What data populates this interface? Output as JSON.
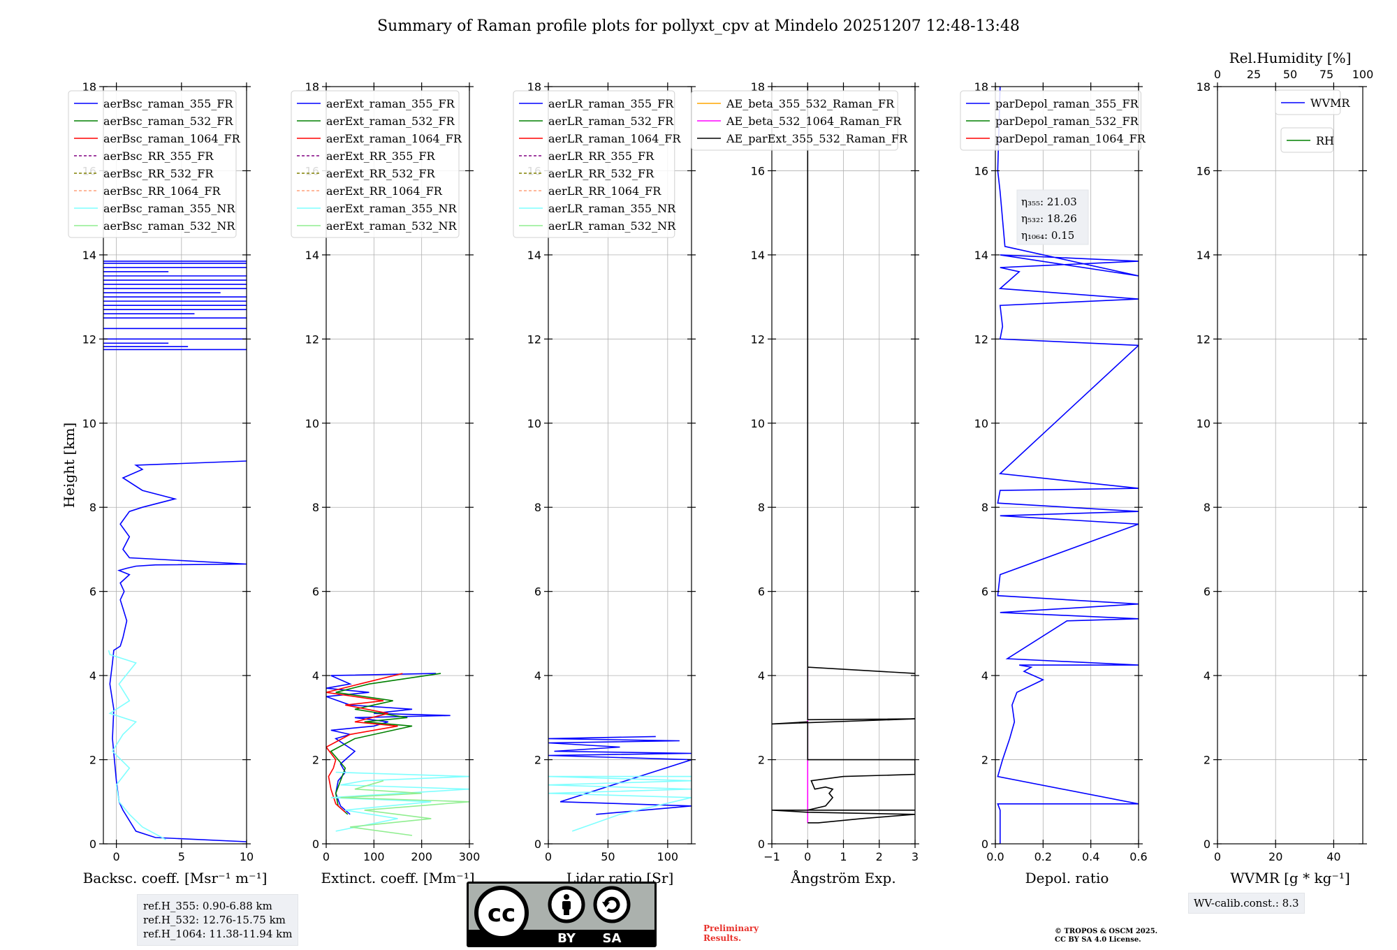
{
  "title": "Summary of Raman profile plots for pollyxt_cpv at Mindelo 20251207 12:48-13:48",
  "chart_data": [
    {
      "type": "line",
      "id": "backscatter",
      "xlabel": "Backsc. coeff. [Msr⁻¹ m⁻¹]",
      "ylabel": "Height [km]",
      "xlim": [
        -1,
        10
      ],
      "ylim": [
        0,
        18
      ],
      "xticks": [
        0,
        5,
        10
      ],
      "yticks": [
        0,
        2,
        4,
        6,
        8,
        10,
        12,
        14,
        16,
        18
      ],
      "legend": [
        "aerBsc_raman_355_FR",
        "aerBsc_raman_532_FR",
        "aerBsc_raman_1064_FR",
        "aerBsc_RR_355_FR",
        "aerBsc_RR_532_FR",
        "aerBsc_RR_1064_FR",
        "aerBsc_raman_355_NR",
        "aerBsc_raman_532_NR"
      ],
      "legend_colors": [
        "#0000ff",
        "#008000",
        "#ff0000",
        "#800080",
        "#808000",
        "#ffa07a",
        "#7fffff",
        "#90ee90"
      ],
      "legend_dashed": [
        false,
        false,
        false,
        true,
        true,
        true,
        false,
        false
      ],
      "legend_loc": "top-left",
      "series": [
        {
          "name": "aerBsc_raman_355_FR",
          "color": "#0000ff",
          "x": [
            10,
            3,
            1.5,
            0.5,
            0.2,
            0,
            -0.3,
            -0.2,
            -0.5,
            -0.3,
            -0.2,
            0.3,
            0.5,
            0.8,
            0.5,
            0.3,
            0.6,
            0.3,
            1,
            0.2,
            0.8,
            1.5,
            3,
            10,
            1,
            0.5,
            1,
            0.3,
            1,
            2,
            4.5,
            2,
            0.5,
            2,
            1.5,
            10
          ],
          "y": [
            0.05,
            0.15,
            0.3,
            0.8,
            1,
            1.5,
            2.5,
            3.2,
            3.8,
            4.3,
            4.6,
            4.7,
            4.9,
            5.3,
            5.6,
            5.8,
            6,
            6.2,
            6.4,
            6.5,
            6.55,
            6.6,
            6.63,
            6.65,
            6.8,
            7,
            7.3,
            7.6,
            7.9,
            8,
            8.2,
            8.4,
            8.7,
            8.9,
            9,
            9.1
          ]
        },
        {
          "name": "aerBsc_raman_355_NR",
          "color": "#7fffff",
          "x": [
            3.8,
            2,
            1,
            0.2,
            0,
            1,
            -0.3,
            0.5,
            1.5,
            -0.5,
            1,
            0.2,
            1.5,
            -0.5,
            -0.6
          ],
          "y": [
            0.1,
            0.4,
            0.7,
            1,
            1.4,
            1.8,
            2.2,
            2.6,
            2.9,
            3.1,
            3.4,
            3.8,
            4.3,
            4.5,
            4.6
          ]
        }
      ],
      "cloud_layers": [
        {
          "name": "aerBsc_raman_355_FR",
          "color": "#0000ff",
          "y": [
            11.75,
            11.82,
            11.9,
            12.0,
            12.25,
            12.5,
            12.6,
            12.7,
            12.8,
            12.9,
            13.0,
            13.1,
            13.2,
            13.3,
            13.4,
            13.5,
            13.6,
            13.7,
            13.8,
            13.85
          ],
          "x": [
            10,
            5.5,
            4,
            10,
            10,
            10,
            6,
            10,
            10,
            10,
            10,
            8,
            10,
            10,
            10,
            10,
            4,
            10,
            10,
            10
          ]
        }
      ]
    },
    {
      "type": "line",
      "id": "extinction",
      "xlabel": "Extinct. coeff. [Mm⁻¹]",
      "xlim": [
        0,
        300
      ],
      "ylim": [
        0,
        18
      ],
      "xticks": [
        0,
        100,
        200,
        300
      ],
      "yticks": [
        0,
        2,
        4,
        6,
        8,
        10,
        12,
        14,
        16,
        18
      ],
      "legend": [
        "aerExt_raman_355_FR",
        "aerExt_raman_532_FR",
        "aerExt_raman_1064_FR",
        "aerExt_RR_355_FR",
        "aerExt_RR_532_FR",
        "aerExt_RR_1064_FR",
        "aerExt_raman_355_NR",
        "aerExt_raman_532_NR"
      ],
      "legend_colors": [
        "#0000ff",
        "#008000",
        "#ff0000",
        "#800080",
        "#808000",
        "#ffa07a",
        "#7fffff",
        "#90ee90"
      ],
      "legend_dashed": [
        false,
        false,
        false,
        true,
        true,
        true,
        false,
        false
      ],
      "legend_loc": "top-left",
      "series": [
        {
          "name": "aerExt_raman_355_FR",
          "color": "#0000ff",
          "x": [
            50,
            30,
            20,
            25,
            40,
            30,
            60,
            20,
            50,
            10,
            100,
            130,
            60,
            260,
            100,
            180,
            50,
            0,
            90,
            0,
            50,
            10,
            230
          ],
          "y": [
            0.7,
            0.9,
            1.2,
            1.5,
            1.7,
            1.9,
            2.2,
            2.5,
            2.6,
            2.7,
            2.8,
            2.9,
            3.0,
            3.05,
            3.1,
            3.2,
            3.3,
            3.5,
            3.6,
            3.7,
            3.8,
            4.0,
            4.05
          ]
        },
        {
          "name": "aerExt_raman_532_FR",
          "color": "#008000",
          "x": [
            45,
            25,
            20,
            30,
            40,
            10,
            60,
            180,
            80,
            170,
            60,
            140,
            20,
            90,
            240
          ],
          "y": [
            0.7,
            0.9,
            1.2,
            1.5,
            1.8,
            2.2,
            2.5,
            2.8,
            2.9,
            3.0,
            3.2,
            3.4,
            3.6,
            3.8,
            4.05
          ]
        },
        {
          "name": "aerExt_raman_1064_FR",
          "color": "#ff0000",
          "x": [
            40,
            20,
            10,
            5,
            15,
            20,
            0,
            50,
            150,
            60,
            130,
            40,
            120,
            0,
            70,
            160
          ],
          "y": [
            0.75,
            0.95,
            1.3,
            1.6,
            1.8,
            2.0,
            2.3,
            2.6,
            2.8,
            2.9,
            3.1,
            3.3,
            3.4,
            3.6,
            3.8,
            4.05
          ]
        },
        {
          "name": "aerExt_raman_355_NR",
          "color": "#7fffff",
          "x": [
            20,
            150,
            40,
            220,
            10,
            300,
            30,
            80,
            300,
            20
          ],
          "y": [
            0.3,
            0.6,
            0.8,
            1.0,
            1.1,
            1.3,
            1.4,
            1.5,
            1.6,
            1.7
          ]
        },
        {
          "name": "aerExt_raman_532_NR",
          "color": "#90ee90",
          "x": [
            180,
            50,
            220,
            80,
            300,
            30,
            200,
            60,
            120
          ],
          "y": [
            0.2,
            0.4,
            0.6,
            0.8,
            1.0,
            1.1,
            1.2,
            1.3,
            1.5
          ]
        }
      ]
    },
    {
      "type": "line",
      "id": "lidar_ratio",
      "xlabel": "Lidar ratio [Sr]",
      "xlim": [
        0,
        120
      ],
      "ylim": [
        0,
        18
      ],
      "xticks": [
        0,
        50,
        100
      ],
      "yticks": [
        0,
        2,
        4,
        6,
        8,
        10,
        12,
        14,
        16,
        18
      ],
      "legend": [
        "aerLR_raman_355_FR",
        "aerLR_raman_532_FR",
        "aerLR_raman_1064_FR",
        "aerLR_RR_355_FR",
        "aerLR_RR_532_FR",
        "aerLR_RR_1064_FR",
        "aerLR_raman_355_NR",
        "aerLR_raman_532_NR"
      ],
      "legend_colors": [
        "#0000ff",
        "#008000",
        "#ff0000",
        "#800080",
        "#808000",
        "#ffa07a",
        "#7fffff",
        "#90ee90"
      ],
      "legend_dashed": [
        false,
        false,
        false,
        true,
        true,
        true,
        false,
        false
      ],
      "legend_loc": "top-left",
      "series": [
        {
          "name": "aerLR_raman_355_FR",
          "color": "#0000ff",
          "x": [
            40,
            80,
            120,
            10,
            120,
            0,
            120,
            5,
            60,
            0,
            110,
            0,
            90
          ],
          "y": [
            0.7,
            0.8,
            0.9,
            1.0,
            2.0,
            2.1,
            2.15,
            2.2,
            2.3,
            2.4,
            2.45,
            2.5,
            2.55
          ]
        },
        {
          "name": "aerLR_raman_355_NR",
          "color": "#7fffff",
          "x": [
            20,
            40,
            60,
            90,
            120,
            0,
            120,
            0,
            120,
            0,
            120
          ],
          "y": [
            0.3,
            0.5,
            0.7,
            0.9,
            1.1,
            1.2,
            1.3,
            1.4,
            1.5,
            1.6,
            1.6
          ]
        }
      ]
    },
    {
      "type": "line",
      "id": "angstrom",
      "xlabel": "Ångström Exp.",
      "xlim": [
        -1,
        3
      ],
      "ylim": [
        0,
        18
      ],
      "xticks": [
        -1,
        0,
        1,
        2,
        3
      ],
      "yticks": [
        0,
        2,
        4,
        6,
        8,
        10,
        12,
        14,
        16,
        18
      ],
      "legend": [
        "AE_beta_355_532_Raman_FR",
        "AE_beta_532_1064_Raman_FR",
        "AE_parExt_355_532_Raman_FR"
      ],
      "legend_colors": [
        "#ffa500",
        "#ff00ff",
        "#000000"
      ],
      "legend_dashed": [
        false,
        false,
        false
      ],
      "legend_loc": "top-left",
      "series": [
        {
          "name": "AE_beta_532_1064_Raman_FR",
          "color": "#ff00ff",
          "x": [
            0,
            0
          ],
          "y": [
            0.5,
            4.2
          ]
        },
        {
          "name": "AE_parExt_355_532_Raman_FR",
          "color": "#000000",
          "x": [
            0,
            0.3,
            1.5,
            3,
            3,
            3,
            0,
            -1,
            3,
            3,
            0,
            0.5,
            0.6,
            0.7,
            0.6,
            0.7,
            0.5,
            0.2,
            0.1,
            1,
            3,
            3,
            0,
            3,
            0,
            0,
            -1,
            3,
            0,
            0,
            3
          ],
          "y": [
            0.5,
            0.5,
            0.6,
            0.7,
            0.7,
            0.7,
            0.75,
            0.8,
            0.8,
            0.8,
            0.8,
            0.9,
            1.0,
            1.1,
            1.2,
            1.3,
            1.35,
            1.3,
            1.5,
            1.6,
            1.65,
            2.0,
            2.0,
            2.0,
            2.0,
            2.9,
            2.85,
            2.97,
            2.95,
            4.2,
            4.05
          ]
        },
        {
          "name": "AE_parExt_355_532_Raman_FR",
          "color": "#000000",
          "x": [
            0,
            0
          ],
          "y": [
            4.2,
            18
          ]
        }
      ]
    },
    {
      "type": "line",
      "id": "depol",
      "xlabel": "Depol. ratio",
      "xlim": [
        0,
        0.6
      ],
      "ylim": [
        0,
        18
      ],
      "xticks": [
        0.0,
        0.2,
        0.4,
        0.6
      ],
      "yticks": [
        0,
        2,
        4,
        6,
        8,
        10,
        12,
        14,
        16,
        18
      ],
      "legend": [
        "parDepol_raman_355_FR",
        "parDepol_raman_532_FR",
        "parDepol_raman_1064_FR"
      ],
      "legend_colors": [
        "#0000ff",
        "#008000",
        "#ff0000"
      ],
      "legend_dashed": [
        false,
        false,
        false
      ],
      "legend_loc": "top-left",
      "annotation": [
        "η₃₅₅: 21.03",
        "η₅₃₂: 18.26",
        "η₁₀₆₄: 0.15"
      ],
      "series": [
        {
          "name": "parDepol_raman_355_FR",
          "color": "#0000ff",
          "x": [
            0.02,
            0.02,
            0.01,
            0.6,
            0.01,
            0.03,
            0.06,
            0.08,
            0.07,
            0.09,
            0.2,
            0.12,
            0.15,
            0.1,
            0.6,
            0.05,
            0.3,
            0.6,
            0.02,
            0.6,
            0.01,
            0.02,
            0.6,
            0.02,
            0.6,
            0.01,
            0.02,
            0.6,
            0.02,
            0.6,
            0.02,
            0.03,
            0.02,
            0.6,
            0.02,
            0.1,
            0.02,
            0.6,
            0.02,
            0.6,
            0.04,
            0.02,
            0.01,
            0.02
          ],
          "y": [
            0,
            0.8,
            0.95,
            0.95,
            1.6,
            2,
            2.5,
            2.9,
            3.3,
            3.6,
            3.9,
            4.1,
            4.2,
            4.25,
            4.25,
            4.4,
            5.3,
            5.35,
            5.5,
            5.7,
            5.9,
            6.4,
            7.6,
            7.8,
            7.9,
            8.1,
            8.4,
            8.45,
            8.8,
            11.85,
            12.0,
            12.3,
            12.8,
            12.95,
            13.2,
            13.6,
            13.7,
            13.85,
            14,
            13.5,
            14.2,
            15.5,
            16,
            18
          ]
        }
      ]
    },
    {
      "type": "line",
      "id": "wvmr",
      "xlabel": "WVMR [g * kg⁻¹]",
      "top_xlabel": "Rel.Humidity [%]",
      "xlim": [
        0,
        50
      ],
      "ylim": [
        0,
        18
      ],
      "xticks": [
        0,
        20,
        40
      ],
      "top_xlim": [
        0,
        100
      ],
      "top_xticks": [
        0,
        25,
        50,
        75,
        100
      ],
      "yticks": [
        0,
        2,
        4,
        6,
        8,
        10,
        12,
        14,
        16,
        18
      ],
      "legend": [
        "WVMR"
      ],
      "legend_colors": [
        "#0000ff"
      ],
      "legend2": [
        "RH"
      ],
      "legend2_colors": [
        "#008000"
      ],
      "legend_loc": "top-right",
      "series": []
    }
  ],
  "notes": {
    "ref_heights": [
      "ref.H_355: 0.90-6.88 km",
      "ref.H_532: 12.76-15.75 km",
      "ref.H_1064: 11.38-11.94 km"
    ],
    "wv_calib": "WV-calib.const.: 8.3",
    "preliminary": [
      "Preliminary",
      "Results."
    ],
    "copyright": [
      "© TROPOS & OSCM 2025.",
      "CC BY SA 4.0 License."
    ],
    "license_badge": [
      "BY",
      "SA"
    ]
  }
}
